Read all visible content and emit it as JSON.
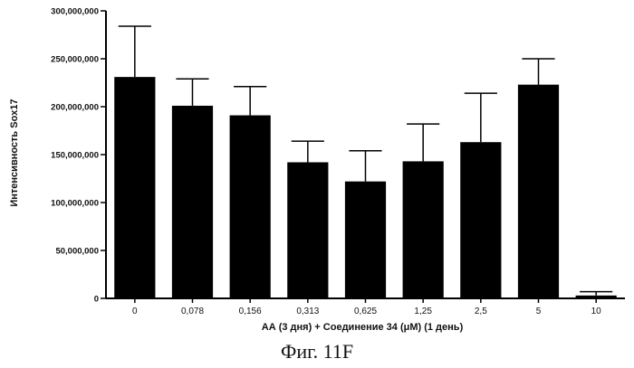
{
  "chart_data": {
    "type": "bar",
    "title": "",
    "xlabel": "АА (3 дня) + Соединение 34 (μM) (1 день)",
    "ylabel": "Интенсивность Sox17",
    "ylim": [
      0,
      300000000
    ],
    "yticks": [
      0,
      50000000,
      100000000,
      150000000,
      200000000,
      250000000,
      300000000
    ],
    "ytick_labels": [
      "0",
      "50,000,000",
      "100,000,000",
      "150,000,000",
      "200,000,000",
      "250,000,000",
      "300,000,000"
    ],
    "categories": [
      "0",
      "0,078",
      "0,156",
      "0,313",
      "0,625",
      "1,25",
      "2,5",
      "5",
      "10"
    ],
    "values": [
      231000000,
      201000000,
      191000000,
      142000000,
      122000000,
      143000000,
      163000000,
      223000000,
      3000000
    ],
    "error_upper": [
      284000000,
      229000000,
      221000000,
      164000000,
      154000000,
      182000000,
      214000000,
      250000000,
      7000000
    ],
    "grid": false,
    "bar_color": "#000000"
  },
  "caption": "Фиг. 11F"
}
